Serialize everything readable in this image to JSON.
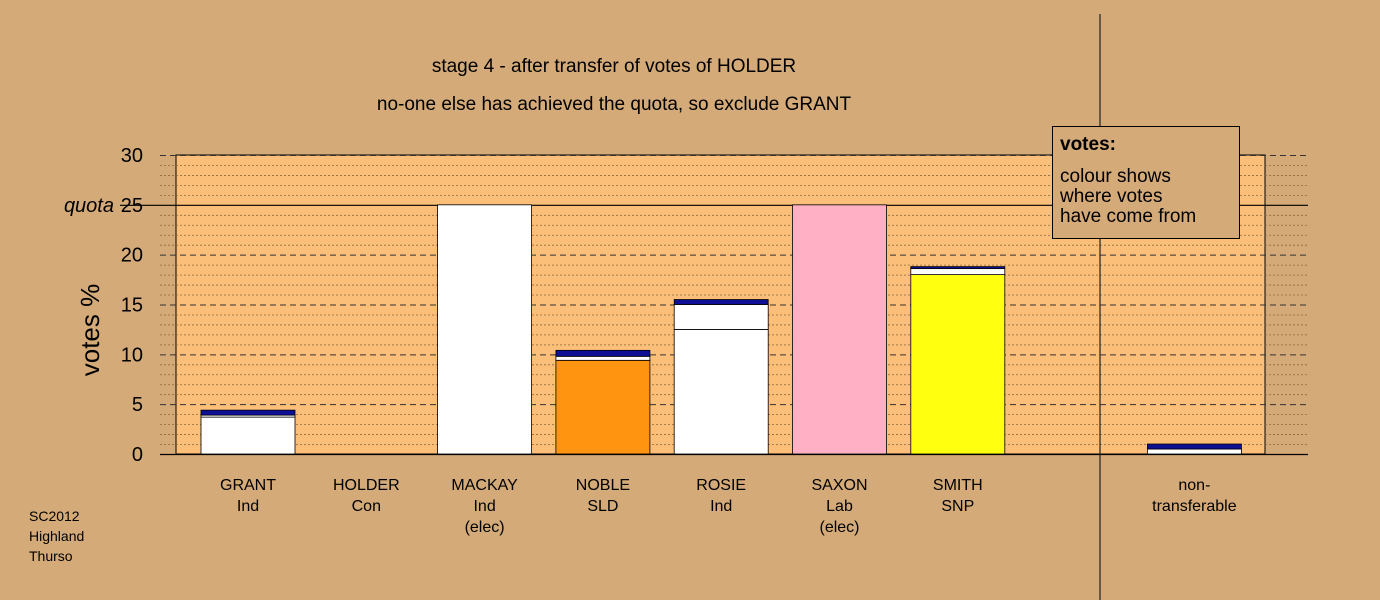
{
  "colors": {
    "background": "#d4aa78",
    "plot_bg": "#fbbf7a",
    "independent": "#ffffff",
    "conservative": "#0f0f96",
    "sld": "#ff9410",
    "labour": "#ffb0c4",
    "snp": "#ffff10"
  },
  "chart_data": {
    "type": "bar",
    "title": "stage 4 - after transfer of votes of HOLDER",
    "subtitle": "no-one else has achieved the quota, so exclude GRANT",
    "ylabel": "votes %",
    "xlabel": "",
    "ylim": [
      0,
      30
    ],
    "yticks": [
      0,
      5,
      10,
      15,
      20,
      25,
      30
    ],
    "grid": true,
    "quota": {
      "label": "quota",
      "value": 25
    },
    "categories": [
      {
        "name": "GRANT",
        "party": "Ind",
        "status": ""
      },
      {
        "name": "HOLDER",
        "party": "Con",
        "status": ""
      },
      {
        "name": "MACKAY",
        "party": "Ind",
        "status": "(elec)"
      },
      {
        "name": "NOBLE",
        "party": "SLD",
        "status": ""
      },
      {
        "name": "ROSIE",
        "party": "Ind",
        "status": ""
      },
      {
        "name": "SAXON",
        "party": "Lab",
        "status": "(elec)"
      },
      {
        "name": "SMITH",
        "party": "SNP",
        "status": ""
      },
      {
        "name": "",
        "party": "",
        "status": ""
      },
      {
        "name": "non-",
        "party": "transferable",
        "status": ""
      }
    ],
    "bars": [
      {
        "category": "GRANT",
        "segments": [
          {
            "source": "independent",
            "value": 3.7
          },
          {
            "source": "independent",
            "value": 0.2
          },
          {
            "source": "conservative",
            "value": 0.5
          }
        ]
      },
      {
        "category": "HOLDER",
        "segments": []
      },
      {
        "category": "MACKAY",
        "segments": [
          {
            "source": "independent",
            "value": 25
          }
        ]
      },
      {
        "category": "NOBLE",
        "segments": [
          {
            "source": "sld",
            "value": 9.4
          },
          {
            "source": "independent",
            "value": 0.4
          },
          {
            "source": "conservative",
            "value": 0.6
          }
        ]
      },
      {
        "category": "ROSIE",
        "segments": [
          {
            "source": "independent",
            "value": 12.5
          },
          {
            "source": "independent",
            "value": 2.5
          },
          {
            "source": "conservative",
            "value": 0.5
          }
        ]
      },
      {
        "category": "SAXON",
        "segments": [
          {
            "source": "labour",
            "value": 25
          }
        ]
      },
      {
        "category": "SMITH",
        "segments": [
          {
            "source": "snp",
            "value": 18
          },
          {
            "source": "independent",
            "value": 0.6
          },
          {
            "source": "conservative",
            "value": 0.2
          }
        ]
      },
      {
        "category": "",
        "segments": []
      },
      {
        "category": "non-transferable",
        "segments": [
          {
            "source": "independent",
            "value": 0.5
          },
          {
            "source": "conservative",
            "value": 0.5
          }
        ]
      }
    ]
  },
  "legend": {
    "title": "votes:",
    "lines": [
      "colour shows",
      "where votes",
      "have come from"
    ]
  },
  "source_note": [
    "SC2012",
    "Highland",
    "Thurso"
  ]
}
